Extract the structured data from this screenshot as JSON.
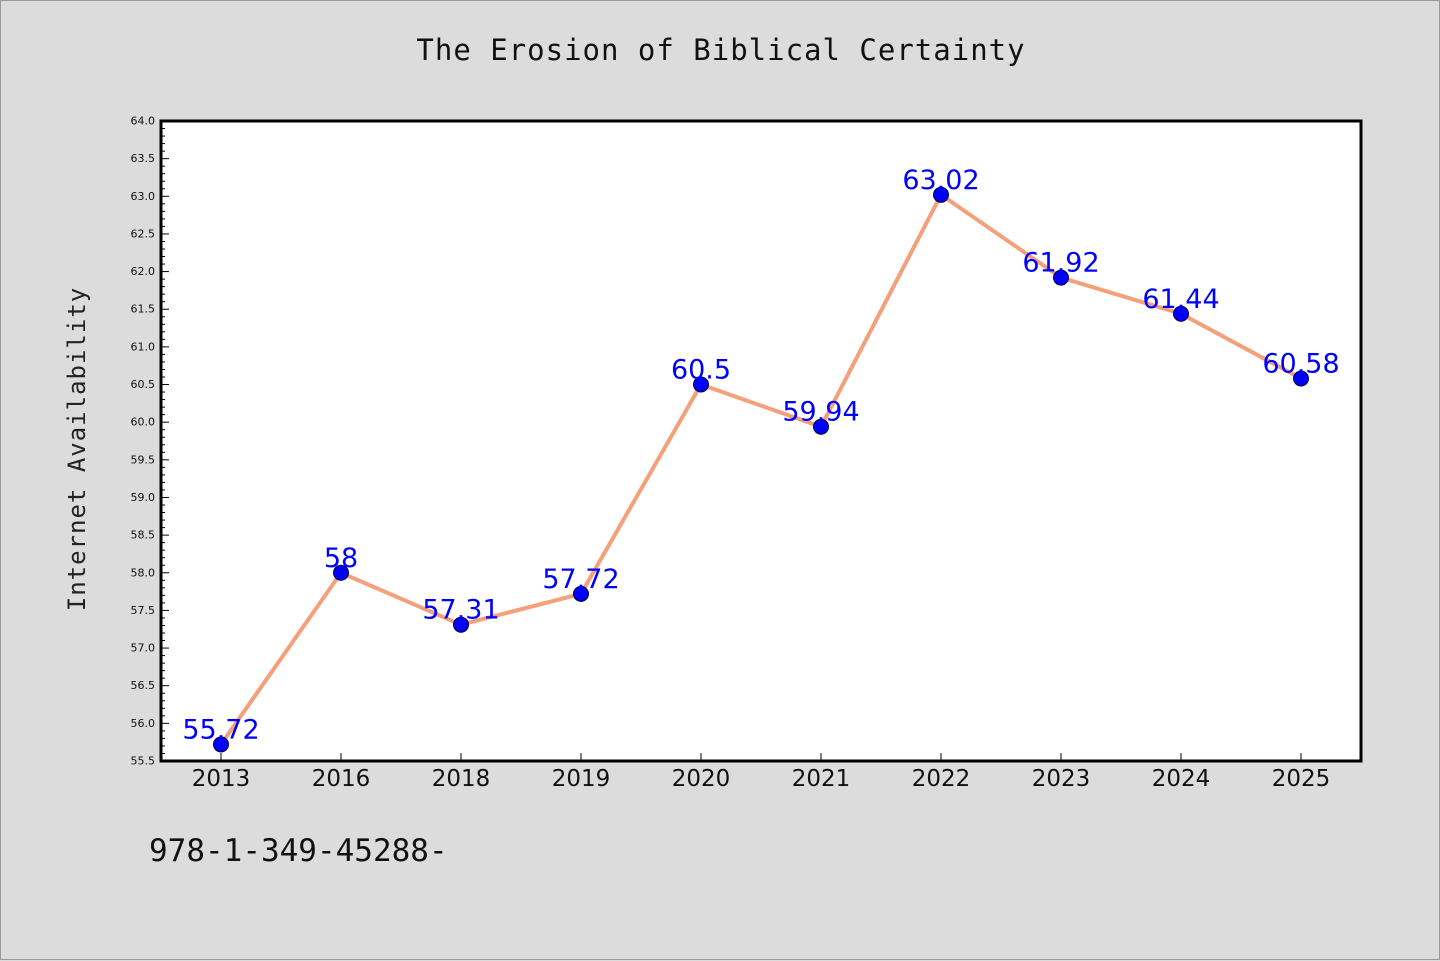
{
  "chart_data": {
    "type": "line",
    "title": "The Erosion of Biblical Certainty",
    "xlabel": "",
    "ylabel": "Internet Availability",
    "categories": [
      "2013",
      "2016",
      "2018",
      "2019",
      "2020",
      "2021",
      "2022",
      "2023",
      "2024",
      "2025"
    ],
    "series": [
      {
        "values": [
          55.72,
          58,
          57.31,
          57.72,
          60.5,
          59.94,
          63.02,
          61.92,
          61.44,
          60.58
        ],
        "data_labels": [
          "55.72",
          "58",
          "57.31",
          "57.72",
          "60.5",
          "59.94",
          "63.02",
          "61.92",
          "61.44",
          "60.58"
        ],
        "line_color": "#f4a07a",
        "marker_color": "#0000ff",
        "label_color": "#0000ff"
      }
    ],
    "ylim": [
      55.5,
      64.0
    ],
    "yticks": [
      "55.5",
      "56.0",
      "56.5",
      "57.0",
      "57.5",
      "58.0",
      "58.5",
      "59.0",
      "59.5",
      "60.0",
      "60.5",
      "61.0",
      "61.5",
      "62.0",
      "62.5",
      "63.0",
      "63.5",
      "64.0"
    ],
    "grid": false,
    "legend": "none"
  },
  "footnote": "978-1-349-45288-",
  "colors": {
    "figure_background": "#dcdcdc",
    "plot_background": "#ffffff",
    "axes_frame": "#000000"
  }
}
